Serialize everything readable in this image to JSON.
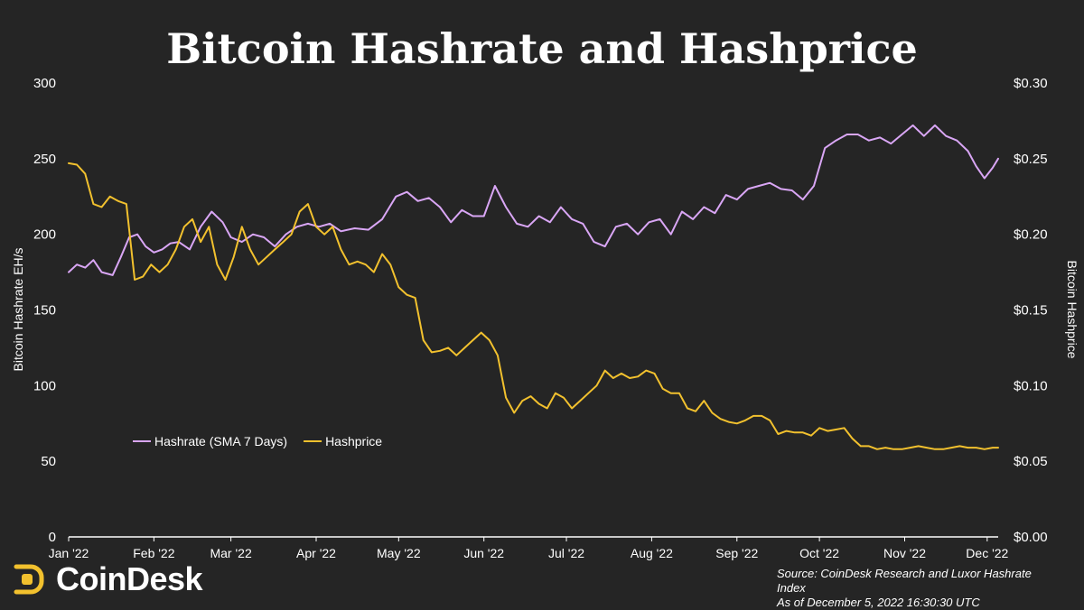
{
  "chart_data": {
    "type": "line",
    "title": "Bitcoin Hashrate and Hashprice",
    "x_categories": [
      "Jan '22",
      "Feb '22",
      "Mar '22",
      "Apr '22",
      "May '22",
      "Jun '22",
      "Jul '22",
      "Aug '22",
      "Sep '22",
      "Oct '22",
      "Nov '22",
      "Dec '22"
    ],
    "x_range": [
      "2022-01-01",
      "2022-12-05"
    ],
    "y_left": {
      "label": "Bitcoin Hashrate EH/s",
      "range": [
        0,
        300
      ],
      "ticks": [
        "0",
        "50",
        "100",
        "150",
        "200",
        "250",
        "300"
      ]
    },
    "y_right": {
      "label": "Bitcoin Hashprice",
      "range": [
        0,
        0.3
      ],
      "ticks": [
        "$0.00",
        "$0.05",
        "$0.10",
        "$0.15",
        "$0.20",
        "$0.25",
        "$0.30"
      ]
    },
    "grid": false,
    "legend_position": "lower-left",
    "series": [
      {
        "name": "Hashrate (SMA 7 Days)",
        "axis": "left",
        "color": "#d9a6f5",
        "x": [
          "2022-01-01",
          "2022-01-04",
          "2022-01-07",
          "2022-01-10",
          "2022-01-13",
          "2022-01-17",
          "2022-01-20",
          "2022-01-23",
          "2022-01-26",
          "2022-01-29",
          "2022-02-01",
          "2022-02-04",
          "2022-02-07",
          "2022-02-10",
          "2022-02-14",
          "2022-02-18",
          "2022-02-22",
          "2022-02-26",
          "2022-03-01",
          "2022-03-05",
          "2022-03-09",
          "2022-03-13",
          "2022-03-17",
          "2022-03-21",
          "2022-03-25",
          "2022-03-29",
          "2022-04-02",
          "2022-04-06",
          "2022-04-10",
          "2022-04-15",
          "2022-04-20",
          "2022-04-25",
          "2022-04-30",
          "2022-05-04",
          "2022-05-08",
          "2022-05-12",
          "2022-05-16",
          "2022-05-20",
          "2022-05-24",
          "2022-05-28",
          "2022-06-01",
          "2022-06-05",
          "2022-06-09",
          "2022-06-13",
          "2022-06-17",
          "2022-06-21",
          "2022-06-25",
          "2022-06-29",
          "2022-07-03",
          "2022-07-07",
          "2022-07-11",
          "2022-07-15",
          "2022-07-19",
          "2022-07-23",
          "2022-07-27",
          "2022-07-31",
          "2022-08-04",
          "2022-08-08",
          "2022-08-12",
          "2022-08-16",
          "2022-08-20",
          "2022-08-24",
          "2022-08-28",
          "2022-09-01",
          "2022-09-05",
          "2022-09-09",
          "2022-09-13",
          "2022-09-17",
          "2022-09-21",
          "2022-09-25",
          "2022-09-29",
          "2022-10-03",
          "2022-10-07",
          "2022-10-11",
          "2022-10-15",
          "2022-10-19",
          "2022-10-23",
          "2022-10-27",
          "2022-10-31",
          "2022-11-04",
          "2022-11-08",
          "2022-11-12",
          "2022-11-16",
          "2022-11-20",
          "2022-11-24",
          "2022-11-27",
          "2022-11-30",
          "2022-12-03",
          "2022-12-05"
        ],
        "y": [
          175,
          180,
          178,
          183,
          175,
          173,
          185,
          198,
          200,
          192,
          188,
          190,
          194,
          195,
          190,
          205,
          215,
          208,
          198,
          195,
          200,
          198,
          192,
          200,
          205,
          207,
          205,
          207,
          202,
          204,
          203,
          210,
          225,
          228,
          222,
          224,
          218,
          208,
          216,
          212,
          212,
          232,
          218,
          207,
          205,
          212,
          208,
          218,
          210,
          207,
          195,
          192,
          205,
          207,
          200,
          208,
          210,
          200,
          215,
          210,
          218,
          214,
          226,
          223,
          230,
          232,
          234,
          230,
          229,
          223,
          232,
          257,
          262,
          266,
          266,
          262,
          264,
          260,
          266,
          272,
          265,
          272,
          265,
          262,
          255,
          245,
          237,
          244,
          250
        ]
      },
      {
        "name": "Hashprice",
        "axis": "right",
        "color": "#f2c12e",
        "x": [
          "2022-01-01",
          "2022-01-04",
          "2022-01-07",
          "2022-01-10",
          "2022-01-13",
          "2022-01-16",
          "2022-01-19",
          "2022-01-22",
          "2022-01-25",
          "2022-01-28",
          "2022-01-31",
          "2022-02-03",
          "2022-02-06",
          "2022-02-09",
          "2022-02-12",
          "2022-02-15",
          "2022-02-18",
          "2022-02-21",
          "2022-02-24",
          "2022-02-27",
          "2022-03-02",
          "2022-03-05",
          "2022-03-08",
          "2022-03-11",
          "2022-03-14",
          "2022-03-17",
          "2022-03-20",
          "2022-03-23",
          "2022-03-26",
          "2022-03-29",
          "2022-04-01",
          "2022-04-04",
          "2022-04-07",
          "2022-04-10",
          "2022-04-13",
          "2022-04-16",
          "2022-04-19",
          "2022-04-22",
          "2022-04-25",
          "2022-04-28",
          "2022-05-01",
          "2022-05-04",
          "2022-05-07",
          "2022-05-10",
          "2022-05-13",
          "2022-05-16",
          "2022-05-19",
          "2022-05-22",
          "2022-05-25",
          "2022-05-28",
          "2022-05-31",
          "2022-06-03",
          "2022-06-06",
          "2022-06-09",
          "2022-06-12",
          "2022-06-15",
          "2022-06-18",
          "2022-06-21",
          "2022-06-24",
          "2022-06-27",
          "2022-06-30",
          "2022-07-03",
          "2022-07-06",
          "2022-07-09",
          "2022-07-12",
          "2022-07-15",
          "2022-07-18",
          "2022-07-21",
          "2022-07-24",
          "2022-07-27",
          "2022-07-30",
          "2022-08-02",
          "2022-08-05",
          "2022-08-08",
          "2022-08-11",
          "2022-08-14",
          "2022-08-17",
          "2022-08-20",
          "2022-08-23",
          "2022-08-26",
          "2022-08-29",
          "2022-09-01",
          "2022-09-04",
          "2022-09-07",
          "2022-09-10",
          "2022-09-13",
          "2022-09-16",
          "2022-09-19",
          "2022-09-22",
          "2022-09-25",
          "2022-09-28",
          "2022-10-01",
          "2022-10-04",
          "2022-10-07",
          "2022-10-10",
          "2022-10-13",
          "2022-10-16",
          "2022-10-19",
          "2022-10-22",
          "2022-10-25",
          "2022-10-28",
          "2022-10-31",
          "2022-11-03",
          "2022-11-06",
          "2022-11-09",
          "2022-11-12",
          "2022-11-15",
          "2022-11-18",
          "2022-11-21",
          "2022-11-24",
          "2022-11-27",
          "2022-11-30",
          "2022-12-03",
          "2022-12-05"
        ],
        "y": [
          0.247,
          0.246,
          0.24,
          0.22,
          0.218,
          0.225,
          0.222,
          0.22,
          0.17,
          0.172,
          0.18,
          0.175,
          0.18,
          0.19,
          0.205,
          0.21,
          0.195,
          0.205,
          0.18,
          0.17,
          0.185,
          0.205,
          0.19,
          0.18,
          0.185,
          0.19,
          0.195,
          0.2,
          0.215,
          0.22,
          0.205,
          0.2,
          0.205,
          0.19,
          0.18,
          0.182,
          0.18,
          0.175,
          0.187,
          0.18,
          0.165,
          0.16,
          0.158,
          0.13,
          0.122,
          0.123,
          0.125,
          0.12,
          0.125,
          0.13,
          0.135,
          0.13,
          0.12,
          0.092,
          0.082,
          0.09,
          0.093,
          0.088,
          0.085,
          0.095,
          0.092,
          0.085,
          0.09,
          0.095,
          0.1,
          0.11,
          0.105,
          0.108,
          0.105,
          0.106,
          0.11,
          0.108,
          0.098,
          0.095,
          0.095,
          0.085,
          0.083,
          0.09,
          0.082,
          0.078,
          0.076,
          0.075,
          0.077,
          0.08,
          0.08,
          0.077,
          0.068,
          0.07,
          0.069,
          0.069,
          0.067,
          0.072,
          0.07,
          0.071,
          0.072,
          0.065,
          0.06,
          0.06,
          0.058,
          0.059,
          0.058,
          0.058,
          0.059,
          0.06,
          0.059,
          0.058,
          0.058,
          0.059,
          0.06,
          0.059,
          0.059,
          0.058,
          0.059,
          0.059
        ]
      }
    ]
  },
  "branding": {
    "logo_text": "CoinDesk"
  },
  "source_text": "Source: CoinDesk Research and Luxor Hashrate Index",
  "timestamp_text": "As of December 5,  2022  16:30:30 UTC"
}
